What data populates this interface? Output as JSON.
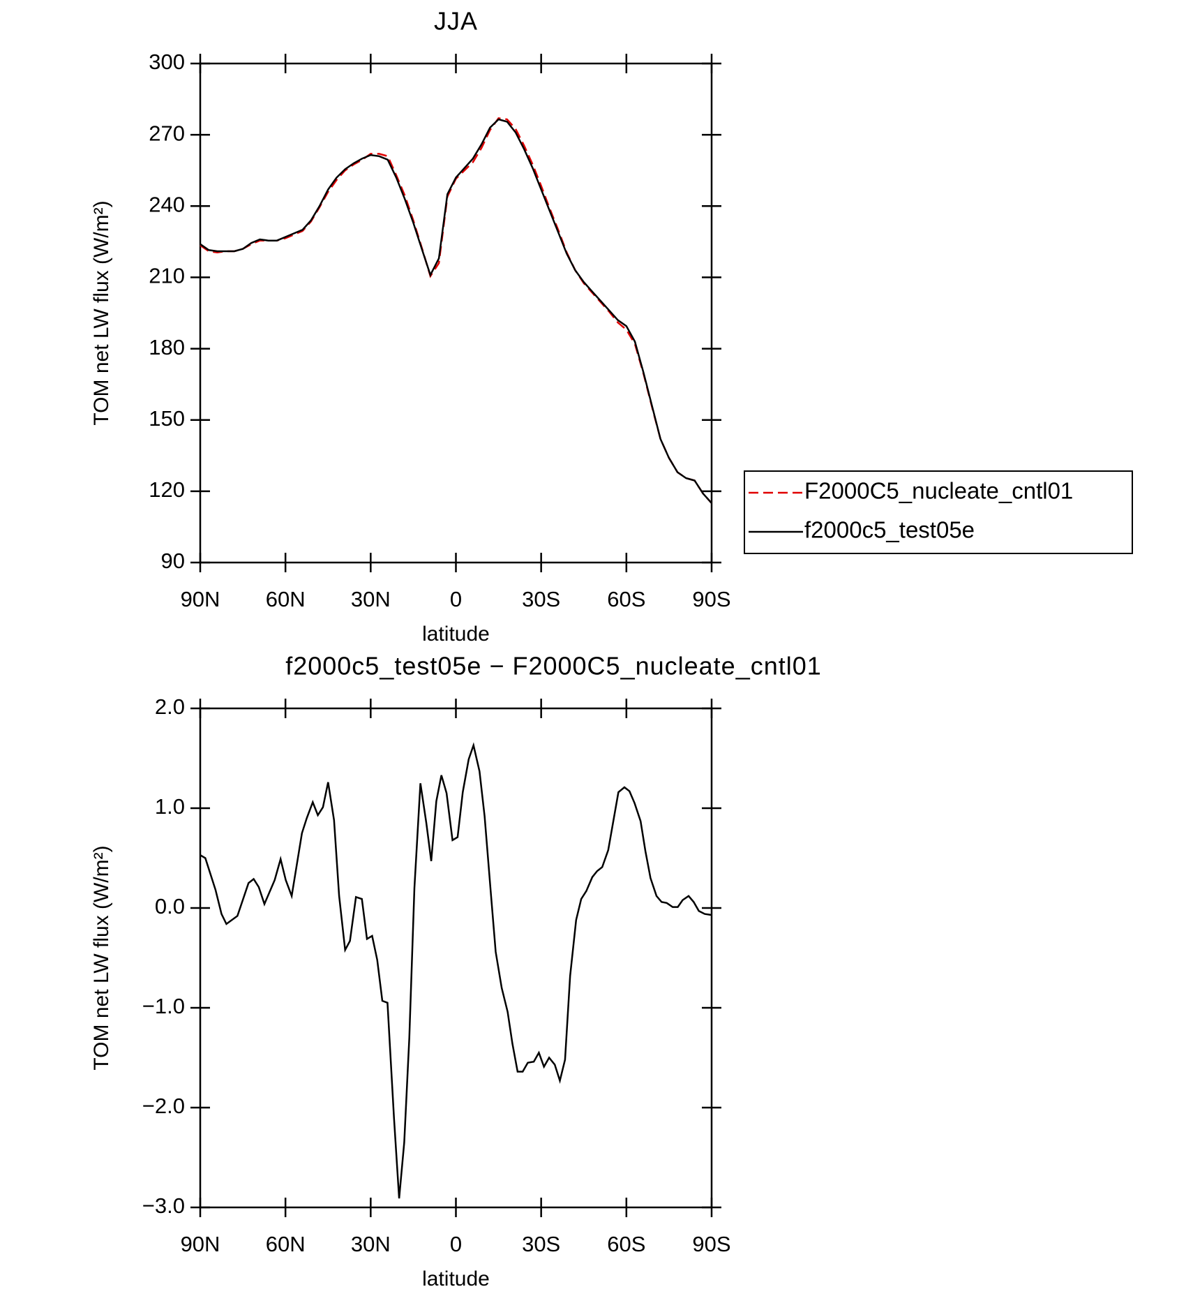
{
  "chart_data": [
    {
      "type": "line",
      "title": "JJA",
      "xlabel": "latitude",
      "ylabel": "TOM net LW flux (W/m²)",
      "x": [
        90,
        87,
        84,
        81,
        78,
        75,
        72,
        69,
        66,
        63,
        60,
        57,
        54,
        51,
        48,
        45,
        42,
        39,
        36,
        33,
        30,
        27,
        24,
        21,
        18,
        15,
        12,
        9,
        6,
        3,
        0,
        -3,
        -6,
        -9,
        -12,
        -15,
        -18,
        -21,
        -24,
        -27,
        -30,
        -33,
        -36,
        -39,
        -42,
        -45,
        -48,
        -51,
        -54,
        -57,
        -60,
        -63,
        -66,
        -69,
        -72,
        -75,
        -78,
        -81,
        -84,
        -87,
        -90
      ],
      "xlim": [
        90,
        -90
      ],
      "xticks": [
        {
          "value": 90,
          "label": "90N"
        },
        {
          "value": 60,
          "label": "60N"
        },
        {
          "value": 30,
          "label": "30N"
        },
        0,
        {
          "value": -30,
          "label": "30S"
        },
        {
          "value": -60,
          "label": "60S"
        },
        {
          "value": -90,
          "label": "90S"
        }
      ],
      "ylim": [
        90,
        300
      ],
      "yticks": [
        90,
        120,
        150,
        180,
        210,
        240,
        270,
        300
      ],
      "legend": "right",
      "series": [
        {
          "name": "F2000C5_nucleate_cntl01",
          "color": "#e00000",
          "linestyle": "dashed",
          "values": [
            223.5,
            221,
            220.5,
            221,
            221,
            222,
            224,
            225.5,
            225.5,
            225.5,
            226.5,
            228,
            229.5,
            233.5,
            239.5,
            246,
            251,
            255,
            257.5,
            259.5,
            262,
            262,
            261,
            253,
            244.5,
            234,
            222.5,
            210.5,
            216,
            244,
            251.5,
            255,
            258.5,
            264.5,
            272,
            277,
            276.5,
            272.5,
            265.5,
            257.5,
            248.5,
            239,
            230,
            220.5,
            213,
            207.5,
            203.5,
            199.5,
            195.5,
            191,
            188,
            182,
            169.5,
            155.5,
            142,
            134,
            128,
            125.5,
            124.5,
            119,
            115
          ]
        },
        {
          "name": "f2000c5_test05e",
          "color": "#000000",
          "linestyle": "solid",
          "values": [
            224,
            221.5,
            221,
            221,
            221,
            222,
            224.5,
            226,
            225.5,
            225.5,
            227,
            228.5,
            230,
            234,
            240,
            247,
            252,
            255.5,
            258,
            260,
            261.5,
            261,
            259.5,
            252,
            243,
            233,
            222,
            211,
            218,
            245,
            252,
            256,
            260,
            266,
            273,
            276.5,
            275.5,
            271,
            264,
            256,
            247,
            238,
            229,
            220,
            213,
            208,
            204,
            200,
            196,
            192,
            189.5,
            183,
            170,
            156,
            142,
            134,
            128,
            125.5,
            124.5,
            119,
            115
          ]
        }
      ]
    },
    {
      "type": "line",
      "title": "f2000c5_test05e − F2000C5_nucleate_cntl01",
      "xlabel": "latitude",
      "ylabel": "TOM net LW flux (W/m²)",
      "x": [
        90,
        88.2,
        84.6,
        82.5,
        80.8,
        76.9,
        73,
        71.2,
        69.4,
        67.4,
        63.8,
        61.7,
        59.9,
        57.8,
        54.2,
        52.5,
        50.4,
        48.6,
        46.8,
        45,
        42.9,
        41.1,
        39,
        37.3,
        35.2,
        33.1,
        31.3,
        29.5,
        27.7,
        25.9,
        24.1,
        21.8,
        20,
        18.2,
        16.4,
        14.6,
        12.5,
        10.4,
        8.7,
        6.9,
        5.1,
        3.3,
        1.2,
        -0.6,
        -2.4,
        -4.5,
        -6.2,
        -8.3,
        -10.1,
        -12.2,
        -14,
        -16.1,
        -18.2,
        -19.9,
        -21.7,
        -23.5,
        -25.3,
        -27.4,
        -29.2,
        -31,
        -32.8,
        -34.8,
        -36.6,
        -38.4,
        -40.2,
        -42.3,
        -44.1,
        -45.9,
        -48,
        -49.7,
        -51.5,
        -53.6,
        -55.4,
        -57.2,
        -59.3,
        -61.1,
        -62.9,
        -65,
        -66.7,
        -68.5,
        -70.6,
        -72.4,
        -74.2,
        -76.3,
        -78.1,
        -79.8,
        -81.9,
        -83.7,
        -85.5,
        -87.6,
        -90
      ],
      "values": [
        0.53,
        0.5,
        0.18,
        -0.06,
        -0.16,
        -0.08,
        0.25,
        0.29,
        0.21,
        0.04,
        0.28,
        0.49,
        0.28,
        0.12,
        0.75,
        0.9,
        1.06,
        0.93,
        1.01,
        1.26,
        0.88,
        0.12,
        -0.42,
        -0.33,
        0.11,
        0.09,
        -0.31,
        -0.28,
        -0.52,
        -0.93,
        -0.95,
        -2.1,
        -2.91,
        -2.35,
        -1.3,
        0.2,
        1.25,
        0.85,
        0.47,
        1.07,
        1.33,
        1.15,
        0.68,
        0.71,
        1.16,
        1.49,
        1.63,
        1.37,
        0.92,
        0.18,
        -0.44,
        -0.8,
        -1.04,
        -1.36,
        -1.64,
        -1.64,
        -1.55,
        -1.54,
        -1.45,
        -1.59,
        -1.5,
        -1.57,
        -1.73,
        -1.52,
        -0.68,
        -0.12,
        0.09,
        0.17,
        0.31,
        0.37,
        0.41,
        0.58,
        0.87,
        1.16,
        1.21,
        1.17,
        1.05,
        0.87,
        0.57,
        0.3,
        0.12,
        0.06,
        0.05,
        0.01,
        0.01,
        0.08,
        0.12,
        0.06,
        -0.03,
        -0.06,
        -0.07
      ],
      "color": "#000000",
      "xlim": [
        90,
        -90
      ],
      "xticks": [
        {
          "value": 90,
          "label": "90N"
        },
        {
          "value": 60,
          "label": "60N"
        },
        {
          "value": 30,
          "label": "30N"
        },
        0,
        {
          "value": -30,
          "label": "30S"
        },
        {
          "value": -60,
          "label": "60S"
        },
        {
          "value": -90,
          "label": "90S"
        }
      ],
      "ylim": [
        -3,
        2
      ],
      "yticks": [
        {
          "value": -3,
          "label": "−3.0"
        },
        {
          "value": -2,
          "label": "−2.0"
        },
        {
          "value": -1,
          "label": "−1.0"
        },
        {
          "value": 0,
          "label": "0.0"
        },
        {
          "value": 1,
          "label": "1.0"
        },
        {
          "value": 2,
          "label": "2.0"
        }
      ]
    }
  ]
}
